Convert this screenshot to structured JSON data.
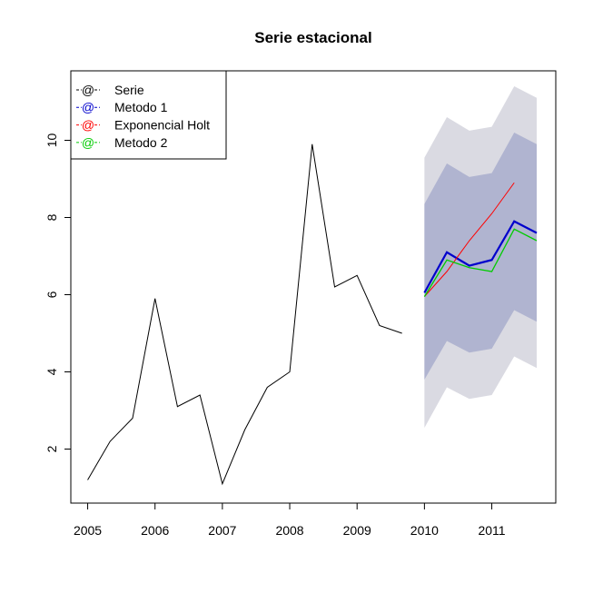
{
  "chart_data": {
    "type": "line",
    "title": "Serie estacional",
    "xlabel": "",
    "ylabel": "",
    "xlim": [
      2004.75,
      2011.95
    ],
    "ylim": [
      0.6,
      11.8
    ],
    "x_ticks": [
      "2005",
      "2006",
      "2007",
      "2008",
      "2009",
      "2010",
      "2011"
    ],
    "y_ticks": [
      "2",
      "4",
      "6",
      "8",
      "10"
    ],
    "legend_position": "top-left",
    "colors": {
      "Serie": "#000000",
      "Metodo 1": "#0000cc",
      "Exponencial Holt": "#ff0000",
      "Metodo 2": "#00cc00",
      "band_outer": "#dadae2",
      "band_inner": "#b0b4d0"
    },
    "series": [
      {
        "name": "Serie",
        "x": [
          2005.0,
          2005.333,
          2005.667,
          2006.0,
          2006.333,
          2006.667,
          2007.0,
          2007.333,
          2007.667,
          2008.0,
          2008.333,
          2008.667,
          2009.0,
          2009.333,
          2009.667
        ],
        "values": [
          1.2,
          2.2,
          2.8,
          5.9,
          3.1,
          3.4,
          1.1,
          2.5,
          3.6,
          4.0,
          9.9,
          6.2,
          6.5,
          5.2,
          5.0
        ]
      },
      {
        "name": "Metodo 1",
        "x": [
          2010.0,
          2010.333,
          2010.667,
          2011.0,
          2011.333,
          2011.667
        ],
        "values": [
          6.05,
          7.1,
          6.75,
          6.9,
          7.9,
          7.6
        ]
      },
      {
        "name": "Exponencial Holt",
        "x": [
          2010.0,
          2010.333,
          2010.667,
          2011.0,
          2011.333
        ],
        "values": [
          5.95,
          6.6,
          7.4,
          8.1,
          8.9
        ]
      },
      {
        "name": "Metodo 2",
        "x": [
          2010.0,
          2010.333,
          2010.667,
          2011.0,
          2011.333,
          2011.667
        ],
        "values": [
          5.95,
          6.9,
          6.7,
          6.6,
          7.7,
          7.4
        ]
      }
    ],
    "forecast_bands": {
      "x": [
        2010.0,
        2010.333,
        2010.667,
        2011.0,
        2011.333,
        2011.667
      ],
      "outer_upper": [
        9.55,
        10.6,
        10.25,
        10.35,
        11.4,
        11.1
      ],
      "outer_lower": [
        2.55,
        3.6,
        3.3,
        3.4,
        4.4,
        4.1
      ],
      "inner_upper": [
        8.35,
        9.4,
        9.05,
        9.15,
        10.2,
        9.9
      ],
      "inner_lower": [
        3.8,
        4.8,
        4.5,
        4.6,
        5.6,
        5.3
      ]
    }
  }
}
